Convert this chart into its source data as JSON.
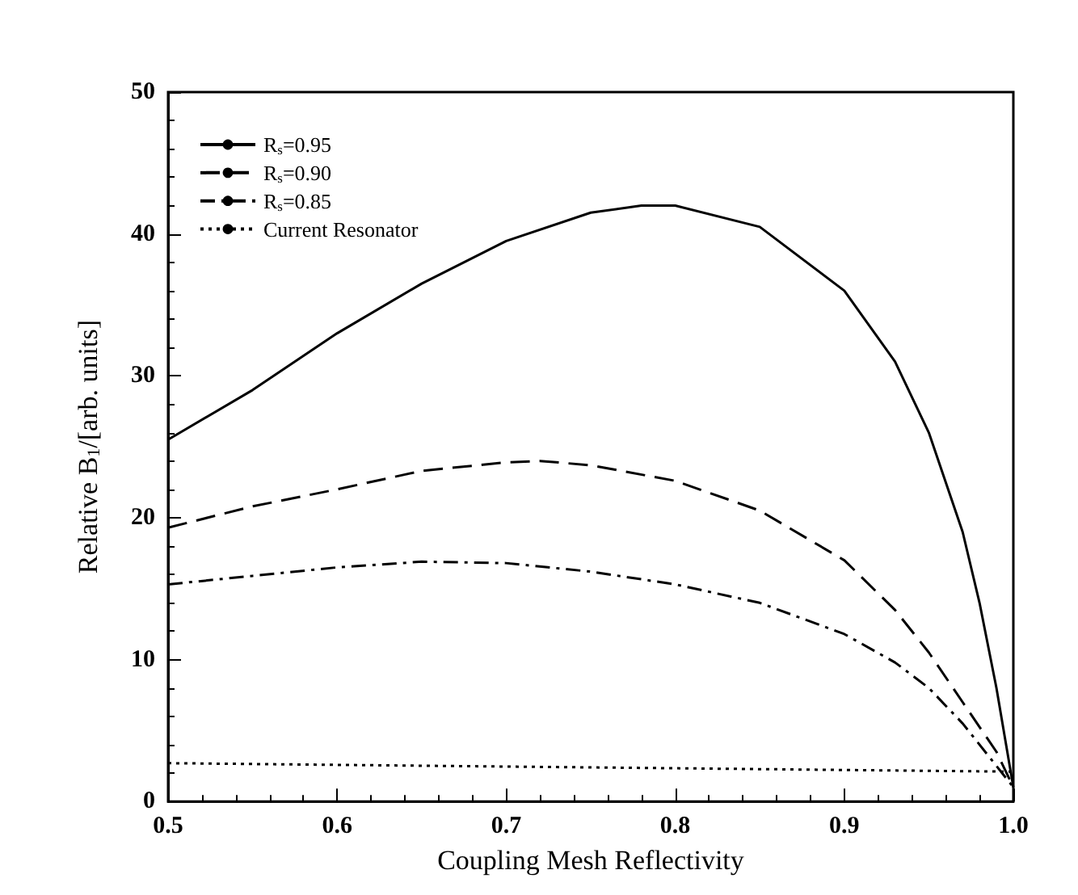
{
  "chart_data": {
    "type": "line",
    "xlabel": "Coupling Mesh Reflectivity",
    "ylabel": "Relative B$_{1}$/[arb. units]",
    "xlim": [
      0.5,
      1.0
    ],
    "xticks": [
      0.5,
      0.6,
      0.7,
      0.8,
      0.9,
      {
        "value": 1.0,
        "label": "1.0"
      }
    ],
    "ylim": [
      0,
      50
    ],
    "yticks": [
      0,
      10,
      20,
      30,
      40,
      50
    ],
    "grid": false,
    "legend": "top left",
    "marker": "none",
    "series": [
      {
        "name": "R$_{s}$=0.95",
        "color": "#000000",
        "line_style": "solid",
        "x": [
          0.5,
          0.55,
          0.6,
          0.65,
          0.7,
          0.75,
          0.78,
          0.8,
          0.85,
          0.9,
          0.93,
          0.95,
          0.97,
          0.98,
          0.99,
          1.0
        ],
        "values": [
          25.5,
          29,
          33,
          36.5,
          39.5,
          41.5,
          42,
          42,
          40.5,
          36,
          31,
          26,
          19,
          14,
          8,
          1
        ]
      },
      {
        "name": "R$_{s}$=0.90",
        "color": "#000000",
        "line_style": "dashed",
        "x": [
          0.5,
          0.55,
          0.6,
          0.65,
          0.7,
          0.72,
          0.75,
          0.8,
          0.85,
          0.9,
          0.93,
          0.95,
          0.97,
          0.99,
          1.0
        ],
        "values": [
          19.3,
          20.8,
          22,
          23.3,
          23.9,
          24,
          23.7,
          22.6,
          20.5,
          17,
          13.5,
          10.5,
          7,
          3.5,
          1
        ]
      },
      {
        "name": "R$_{s}$=0.85",
        "color": "#000000",
        "line_style": "dashdot",
        "x": [
          0.5,
          0.55,
          0.6,
          0.65,
          0.7,
          0.75,
          0.8,
          0.85,
          0.9,
          0.93,
          0.95,
          0.97,
          0.99,
          1.0
        ],
        "values": [
          15.3,
          15.9,
          16.5,
          16.9,
          16.8,
          16.2,
          15.3,
          14,
          11.8,
          9.8,
          8,
          5.5,
          2.5,
          1
        ]
      },
      {
        "name": "Current Resonator",
        "color": "#000000",
        "line_style": "dotted",
        "x": [
          0.5,
          0.75,
          1.0
        ],
        "values": [
          2.7,
          2.4,
          2.1
        ]
      }
    ]
  }
}
